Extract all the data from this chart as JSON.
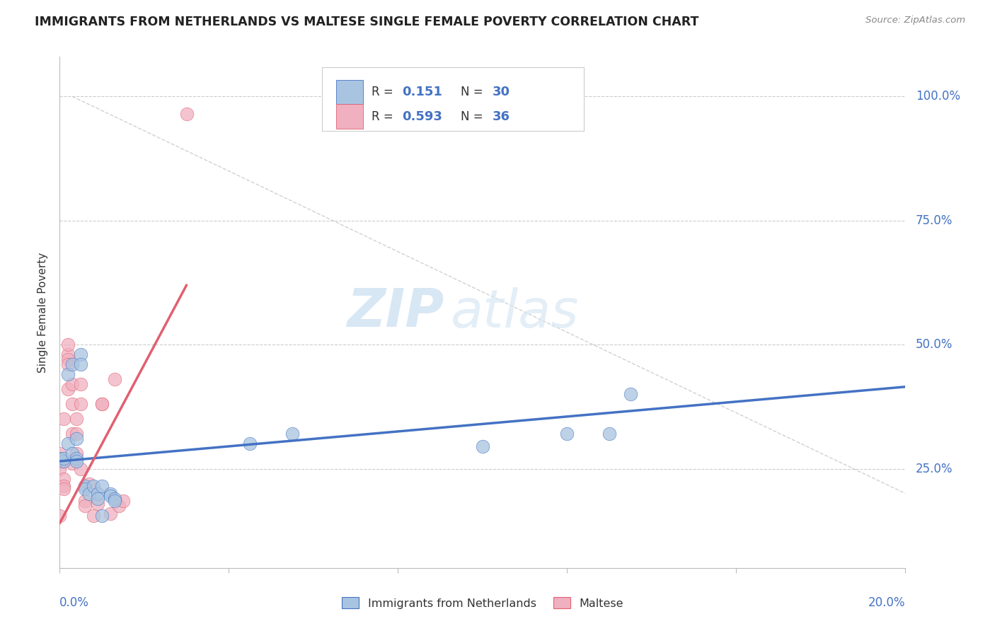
{
  "title": "IMMIGRANTS FROM NETHERLANDS VS MALTESE SINGLE FEMALE POVERTY CORRELATION CHART",
  "source": "Source: ZipAtlas.com",
  "ylabel": "Single Female Poverty",
  "legend_bottom": [
    "Immigrants from Netherlands",
    "Maltese"
  ],
  "blue_color": "#4472c4",
  "pink_color": "#e06070",
  "blue_scatter_color": "#a8c4e0",
  "pink_scatter_color": "#f0b0c0",
  "watermark_zip": "ZIP",
  "watermark_atlas": "atlas",
  "xlim": [
    0.0,
    0.2
  ],
  "ylim": [
    0.05,
    1.08
  ],
  "yticks": [
    0.25,
    0.5,
    0.75,
    1.0
  ],
  "xticks": [
    0.0,
    0.04,
    0.08,
    0.12,
    0.16,
    0.2
  ],
  "blue_R": "0.151",
  "blue_N": "30",
  "pink_R": "0.593",
  "pink_N": "36",
  "blue_points_x": [
    0.0,
    0.001,
    0.001,
    0.002,
    0.002,
    0.003,
    0.003,
    0.004,
    0.004,
    0.004,
    0.005,
    0.005,
    0.006,
    0.006,
    0.007,
    0.008,
    0.009,
    0.009,
    0.01,
    0.01,
    0.012,
    0.012,
    0.013,
    0.013,
    0.045,
    0.055,
    0.1,
    0.12,
    0.13,
    0.135
  ],
  "blue_points_y": [
    0.27,
    0.265,
    0.27,
    0.3,
    0.44,
    0.28,
    0.46,
    0.27,
    0.31,
    0.265,
    0.48,
    0.46,
    0.215,
    0.21,
    0.2,
    0.215,
    0.2,
    0.19,
    0.215,
    0.155,
    0.2,
    0.195,
    0.19,
    0.185,
    0.3,
    0.32,
    0.295,
    0.32,
    0.32,
    0.4
  ],
  "pink_points_x": [
    0.0,
    0.0,
    0.0,
    0.0,
    0.001,
    0.001,
    0.001,
    0.001,
    0.001,
    0.002,
    0.002,
    0.002,
    0.002,
    0.002,
    0.003,
    0.003,
    0.003,
    0.003,
    0.004,
    0.004,
    0.004,
    0.005,
    0.005,
    0.005,
    0.006,
    0.006,
    0.007,
    0.008,
    0.009,
    0.01,
    0.01,
    0.012,
    0.013,
    0.014,
    0.015,
    0.03
  ],
  "pink_points_y": [
    0.28,
    0.265,
    0.25,
    0.155,
    0.265,
    0.23,
    0.215,
    0.21,
    0.35,
    0.48,
    0.47,
    0.5,
    0.46,
    0.41,
    0.42,
    0.38,
    0.32,
    0.26,
    0.35,
    0.32,
    0.28,
    0.42,
    0.38,
    0.25,
    0.185,
    0.175,
    0.22,
    0.155,
    0.18,
    0.38,
    0.38,
    0.16,
    0.43,
    0.175,
    0.185,
    0.965
  ],
  "blue_line_x": [
    0.0,
    0.2
  ],
  "blue_line_y": [
    0.265,
    0.415
  ],
  "pink_line_x": [
    0.0,
    0.03
  ],
  "pink_line_y": [
    0.14,
    0.62
  ],
  "diag_line_x": [
    0.003,
    0.2
  ],
  "diag_line_y": [
    1.0,
    0.2
  ]
}
